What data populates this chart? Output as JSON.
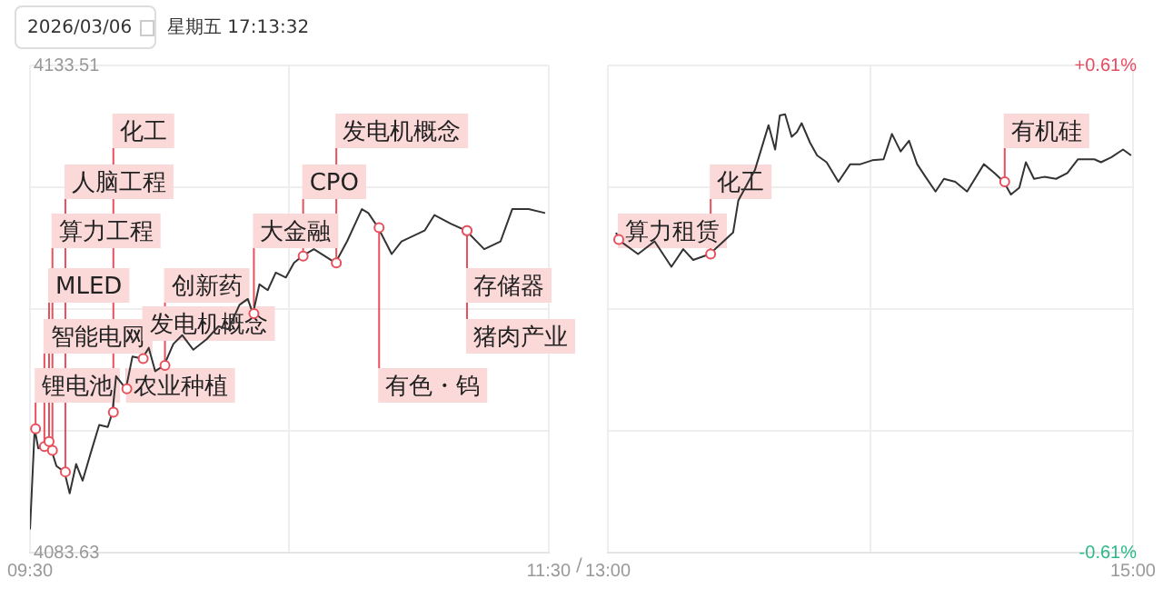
{
  "chart_data": [
    {
      "type": "line",
      "x": [
        9.5,
        9.518,
        9.532,
        9.552,
        9.57,
        9.583,
        9.602,
        9.633,
        9.653,
        9.678,
        9.703,
        9.735,
        9.767,
        9.8,
        9.818,
        9.832,
        9.87,
        9.895,
        9.933,
        9.958,
        9.983,
        10.017,
        10.053,
        10.087,
        10.13,
        10.182,
        10.227,
        10.265,
        10.308,
        10.34,
        10.36,
        10.385,
        10.417,
        10.448,
        10.487,
        10.518,
        10.55,
        10.595,
        10.678,
        10.723,
        10.78,
        10.805,
        10.843,
        10.895,
        10.933,
        11.022,
        11.06,
        11.123,
        11.182,
        11.252,
        11.315,
        11.36,
        11.423,
        11.487
      ],
      "series": [
        {
          "color": "#333333",
          "values": [
            4086.0,
            4096.3,
            4094.3,
            4094.5,
            4095.0,
            4094.1,
            4092.5,
            4091.9,
            4089.7,
            4092.7,
            4091.0,
            4093.9,
            4096.7,
            4096.5,
            4098.0,
            4101.7,
            4100.4,
            4103.7,
            4103.5,
            4104.6,
            4102.2,
            4102.8,
            4105.0,
            4105.9,
            4104.4,
            4105.5,
            4106.8,
            4106.5,
            4109.0,
            4109.6,
            4108.1,
            4111.1,
            4110.5,
            4112.3,
            4111.8,
            4113.3,
            4114.0,
            4114.7,
            4113.3,
            4115.5,
            4118.8,
            4118.4,
            4116.9,
            4114.2,
            4115.5,
            4116.6,
            4118.2,
            4117.3,
            4116.6,
            4114.7,
            4115.5,
            4118.8,
            4118.8,
            4118.4
          ]
        }
      ],
      "xlim": [
        9.5,
        11.5
      ],
      "xticks": [
        {
          "value": 9.5,
          "label": "09:30"
        },
        {
          "value": 10.5,
          "label": null
        },
        {
          "value": 11.5,
          "label": "11:30"
        }
      ],
      "ylim": [
        4083.63,
        4133.51
      ],
      "yticks": [
        {
          "value": 4083.63,
          "label": "4083.63"
        },
        {
          "value": 4096.1,
          "label": null
        },
        {
          "value": 4108.57,
          "label": null
        },
        {
          "value": 4121.04,
          "label": null
        },
        {
          "value": 4133.51,
          "label": "4133.51"
        }
      ],
      "grid": true,
      "legend": false,
      "marker": "none",
      "line_style": "solid",
      "annotations": [
        "2026/03/06",
        "星期五 17:13:32",
        "/",
        {
          "text": "锂电池",
          "x": 9.518,
          "y": 4096.3
        },
        {
          "text": "智能电网",
          "x": 9.552,
          "y": 4094.5
        },
        {
          "text": "MLED",
          "x": 9.57,
          "y": 4095.0
        },
        {
          "text": "算力工程",
          "x": 9.583,
          "y": 4094.1
        },
        {
          "text": "人脑工程",
          "x": 9.633,
          "y": 4091.9
        },
        {
          "text": "化工",
          "x": 9.818,
          "y": 4098.0
        },
        {
          "text": "农业种植",
          "x": 9.87,
          "y": 4100.4
        },
        {
          "text": "发电机概念",
          "x": 9.933,
          "y": 4103.5
        },
        {
          "text": "创新药",
          "x": 10.017,
          "y": 4102.8
        },
        {
          "text": "大金融",
          "x": 10.36,
          "y": 4108.1
        },
        {
          "text": "CPO",
          "x": 10.55,
          "y": 4114.0
        },
        {
          "text": "发电机概念",
          "x": 10.678,
          "y": 4113.3
        },
        {
          "text": "有色・钨",
          "x": 10.843,
          "y": 4116.9
        },
        {
          "text": "存储器",
          "x": 11.182,
          "y": 4116.6
        },
        {
          "text": "猪肉产业",
          "x": 11.182,
          "y": 4116.6
        }
      ]
    },
    {
      "type": "line",
      "x": [
        13.032,
        13.038,
        13.115,
        13.178,
        13.242,
        13.287,
        13.325,
        13.388,
        13.477,
        13.497,
        13.56,
        13.612,
        13.637,
        13.655,
        13.675,
        13.7,
        13.72,
        13.738,
        13.77,
        13.797,
        13.833,
        13.878,
        13.923,
        13.962,
        14.007,
        14.05,
        14.082,
        14.115,
        14.147,
        14.178,
        14.21,
        14.248,
        14.28,
        14.323,
        14.368,
        14.432,
        14.472,
        14.508,
        14.535,
        14.567,
        14.592,
        14.623,
        14.662,
        14.707,
        14.75,
        14.79,
        14.853,
        14.878,
        14.917,
        14.962,
        14.993
      ],
      "series": [
        {
          "color": "#333333",
          "values": [
            4116.4,
            4115.7,
            4114.2,
            4115.5,
            4112.9,
            4114.7,
            4113.6,
            4114.2,
            4116.4,
            4119.7,
            4122.8,
            4127.4,
            4124.9,
            4128.4,
            4128.5,
            4126.2,
            4126.7,
            4127.6,
            4125.6,
            4124.3,
            4123.6,
            4121.6,
            4123.4,
            4123.4,
            4123.8,
            4123.9,
            4126.5,
            4124.7,
            4125.8,
            4123.4,
            4122.1,
            4120.6,
            4121.9,
            4121.6,
            4120.6,
            4123.4,
            4122.5,
            4121.6,
            4120.3,
            4121.0,
            4123.6,
            4121.9,
            4122.1,
            4121.9,
            4122.5,
            4123.9,
            4123.9,
            4123.6,
            4124.1,
            4124.9,
            4124.3
          ]
        }
      ],
      "xlim": [
        13,
        15
      ],
      "xticks": [
        {
          "value": 13,
          "label": "13:00"
        },
        {
          "value": 14,
          "label": null
        },
        {
          "value": 15,
          "label": "15:00"
        }
      ],
      "ylim": [
        4083.63,
        4133.51
      ],
      "yticks": [
        {
          "value": 4083.63,
          "label": null
        },
        {
          "value": 4096.1,
          "label": null
        },
        {
          "value": 4108.57,
          "label": null
        },
        {
          "value": 4121.04,
          "label": null
        },
        {
          "value": 4133.51,
          "label": null
        }
      ],
      "tick_labels": "x",
      "y2lim": [
        -0.61,
        0.61
      ],
      "y2ticks": [
        {
          "value": -0.61,
          "label": "-0.61%"
        },
        {
          "value": 0.61,
          "label": "+0.61%"
        }
      ],
      "grid": true,
      "legend": false,
      "marker": "none",
      "line_style": "solid",
      "annotations": [
        {
          "text": "算力租赁",
          "x": 13.038,
          "y": 4115.7
        },
        {
          "text": "化工",
          "x": 13.388,
          "y": 4114.2
        },
        {
          "text": "有机硅",
          "x": 14.508,
          "y": 4121.6
        }
      ]
    }
  ]
}
